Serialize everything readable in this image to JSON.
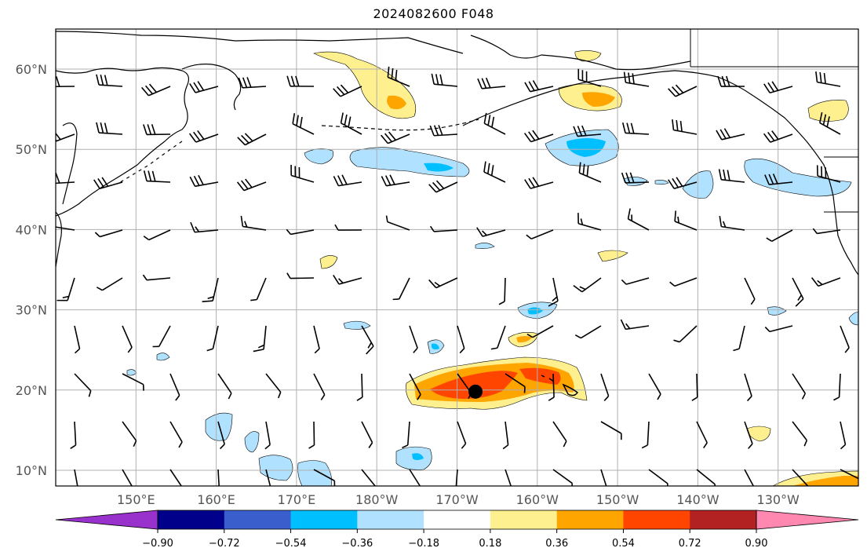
{
  "title": "2024082600 F048",
  "map": {
    "lat_labels": [
      "60°N",
      "50°N",
      "40°N",
      "30°N",
      "20°N",
      "10°N"
    ],
    "lat_values": [
      60,
      50,
      40,
      30,
      20,
      10
    ],
    "lon_labels": [
      "150°E",
      "160°E",
      "170°E",
      "180°W",
      "170°W",
      "160°W",
      "150°W",
      "140°W",
      "130°W"
    ],
    "lon_values": [
      150,
      160,
      170,
      180,
      190,
      200,
      210,
      220,
      230
    ],
    "lon_range": [
      140,
      240
    ],
    "lat_range": [
      8,
      65
    ],
    "marker": {
      "lon": 192.3,
      "lat": 19.8,
      "name": "center-marker"
    }
  },
  "colorbar": {
    "ticks": [
      "−0.90",
      "−0.72",
      "−0.54",
      "−0.36",
      "−0.18",
      "0.18",
      "0.36",
      "0.54",
      "0.72",
      "0.90"
    ],
    "colors": [
      "#9932cc",
      "#00008b",
      "#3a5fcd",
      "#00bfff",
      "#b0e2ff",
      "#ffffff",
      "#fff08f",
      "#ffa500",
      "#ff4500",
      "#b22222",
      "#ff88b0"
    ]
  },
  "colors": {
    "positive_light": "#fff08f",
    "positive_mid": "#ffa500",
    "positive_strong": "#ff4500",
    "negative_light": "#b0e2ff",
    "negative_mid": "#00bfff",
    "grid": "#b0b0b0",
    "coast": "#000000"
  }
}
